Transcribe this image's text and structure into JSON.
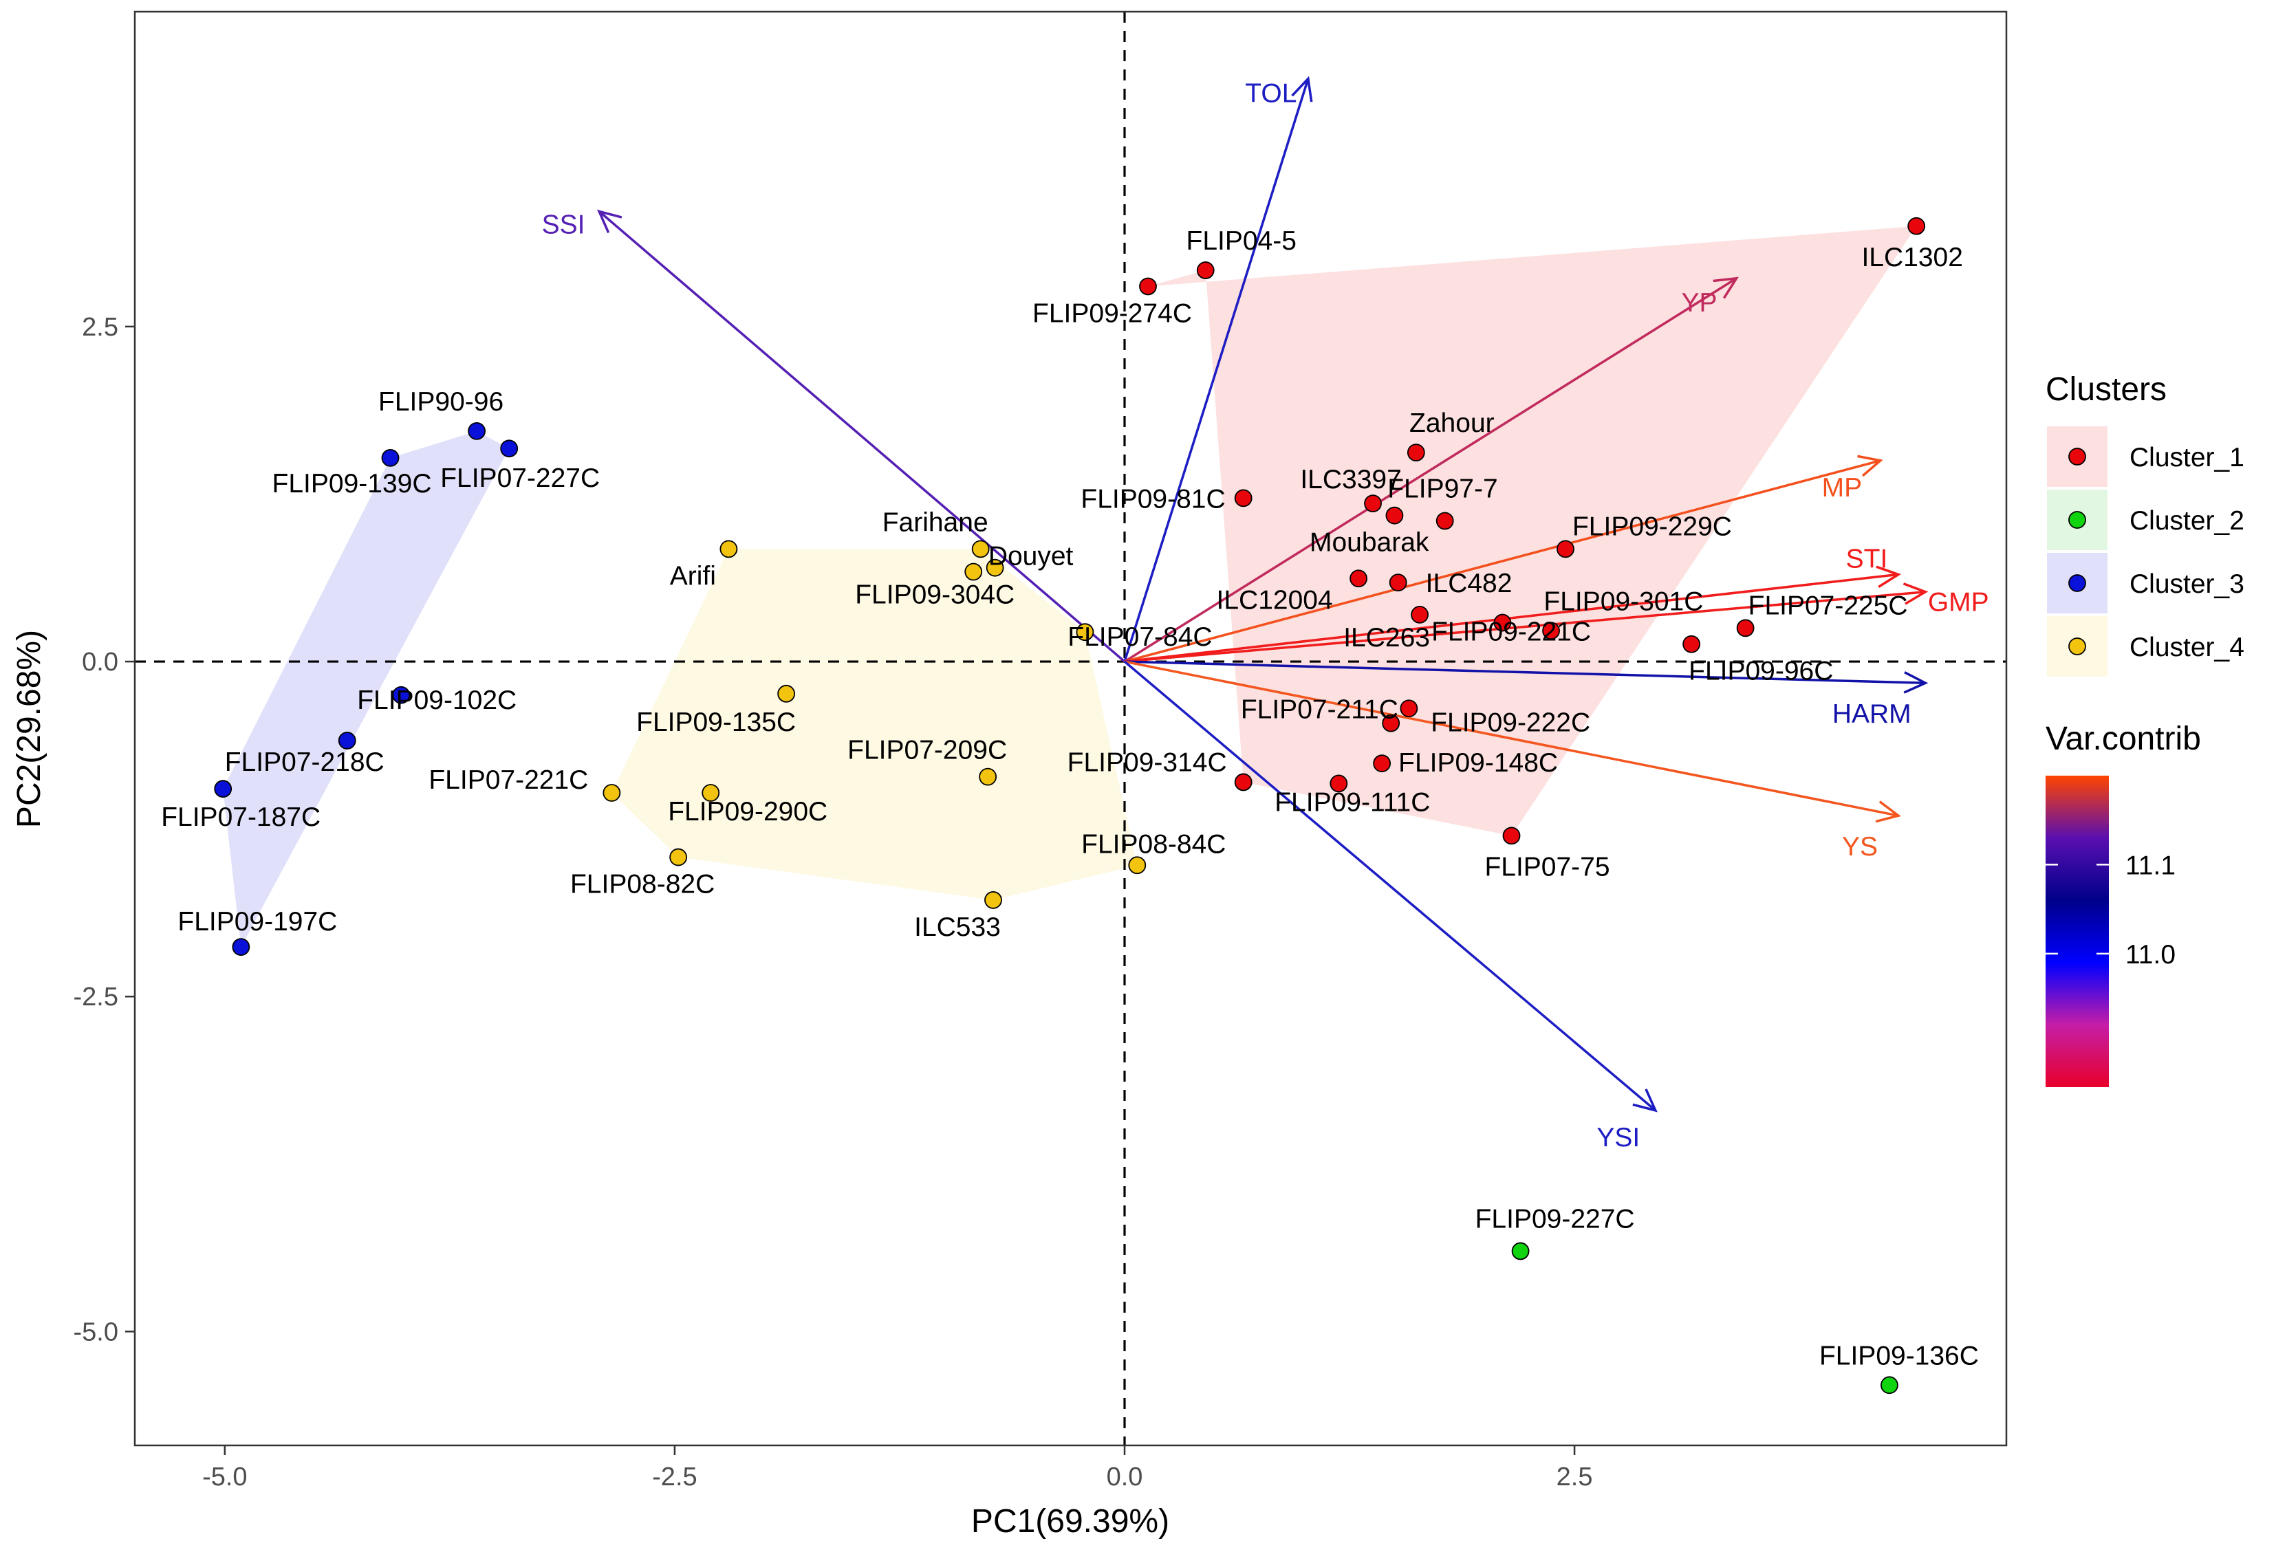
{
  "chart_data": {
    "type": "scatter",
    "subtype": "pca-biplot",
    "xlabel": "PC1(69.39%)",
    "ylabel": "PC2(29.68%)",
    "xlim": [
      -5.5,
      4.9
    ],
    "ylim": [
      -5.85,
      4.85
    ],
    "x_ticks": [
      -5.0,
      -2.5,
      0.0,
      2.5
    ],
    "y_ticks": [
      -5.0,
      -2.5,
      0.0,
      2.5
    ],
    "x_tick_labels": [
      "-5.0",
      "-2.5",
      "0.0",
      "2.5"
    ],
    "y_tick_labels": [
      "-5.0",
      "-2.5",
      "0.0",
      "2.5"
    ],
    "reference_lines": {
      "x": 0,
      "y": 0,
      "style": "dashed"
    },
    "clusters": [
      {
        "name": "Cluster_1",
        "color": "#e8060c",
        "fill": "#fde0e0",
        "hull": [
          "FLIP09-274C",
          "ILC1302",
          "FLIP07-75",
          "FLIP09-314C",
          "FLIP04-5"
        ],
        "points": [
          {
            "label": "ILC1302",
            "x": 4.4,
            "y": 3.25
          },
          {
            "label": "FLIP04-5",
            "x": 0.45,
            "y": 2.92
          },
          {
            "label": "FLIP09-274C",
            "x": 0.13,
            "y": 2.8
          },
          {
            "label": "Zahour",
            "x": 1.62,
            "y": 1.56
          },
          {
            "label": "FLIP09-81C",
            "x": 0.66,
            "y": 1.22
          },
          {
            "label": "ILC3397",
            "x": 1.38,
            "y": 1.18
          },
          {
            "label": "FLIP97-7",
            "x": 1.5,
            "y": 1.09
          },
          {
            "label": "Moubarak",
            "x": 1.78,
            "y": 1.05
          },
          {
            "label": "FLIP09-229C",
            "x": 2.45,
            "y": 0.84
          },
          {
            "label": "ILC12004",
            "x": 1.3,
            "y": 0.62
          },
          {
            "label": "ILC482",
            "x": 1.52,
            "y": 0.59
          },
          {
            "label": "ILC263",
            "x": 1.64,
            "y": 0.35
          },
          {
            "label": "FLIP09-301C",
            "x": 2.1,
            "y": 0.29
          },
          {
            "label": "FLIP09-221C",
            "x": 2.37,
            "y": 0.23
          },
          {
            "label": "FLIP07-225C",
            "x": 3.45,
            "y": 0.25
          },
          {
            "label": "FLIP09-96C",
            "x": 3.15,
            "y": 0.13
          },
          {
            "label": "FLIP07-211C",
            "x": 1.58,
            "y": -0.35
          },
          {
            "label": "FLIP09-222C",
            "x": 1.48,
            "y": -0.46
          },
          {
            "label": "FLIP09-148C",
            "x": 1.43,
            "y": -0.76
          },
          {
            "label": "FLIP09-314C",
            "x": 0.66,
            "y": -0.9
          },
          {
            "label": "FLIP09-111C",
            "x": 1.19,
            "y": -0.91
          },
          {
            "label": "FLIP07-75",
            "x": 2.15,
            "y": -1.3
          }
        ]
      },
      {
        "name": "Cluster_2",
        "color": "#11d411",
        "fill": "#e2f7e2",
        "hull": [],
        "points": [
          {
            "label": "FLIP09-227C",
            "x": 2.2,
            "y": -4.4
          },
          {
            "label": "FLIP09-136C",
            "x": 4.25,
            "y": -5.4
          }
        ]
      },
      {
        "name": "Cluster_3",
        "color": "#0a11d8",
        "fill": "#e0e0fa",
        "hull": [
          "FLIP07-187C",
          "FLIP09-139C",
          "FLIP90-96",
          "FLIP07-227C",
          "FLIP09-197C"
        ],
        "points": [
          {
            "label": "FLIP90-96",
            "x": -3.6,
            "y": 1.72
          },
          {
            "label": "FLIP07-227C",
            "x": -3.42,
            "y": 1.59
          },
          {
            "label": "FLIP09-139C",
            "x": -4.08,
            "y": 1.52
          },
          {
            "label": "FLIP09-102C",
            "x": -4.02,
            "y": -0.25
          },
          {
            "label": "FLIP07-218C",
            "x": -4.32,
            "y": -0.59
          },
          {
            "label": "FLIP07-187C",
            "x": -5.01,
            "y": -0.95
          },
          {
            "label": "FLIP09-197C",
            "x": -4.91,
            "y": -2.13
          }
        ]
      },
      {
        "name": "Cluster_4",
        "color": "#f2c40f",
        "fill": "#fdf9e3",
        "hull": [
          "Arifi",
          "Farihane",
          "FLIP07-84C",
          "FLIP08-84C",
          "ILC533",
          "FLIP08-82C",
          "FLIP07-221C"
        ],
        "points": [
          {
            "label": "Arifi",
            "x": -2.2,
            "y": 0.84
          },
          {
            "label": "Farihane",
            "x": -0.8,
            "y": 0.84
          },
          {
            "label": "Douyet",
            "x": -0.72,
            "y": 0.7
          },
          {
            "label": "FLIP09-304C",
            "x": -0.84,
            "y": 0.67
          },
          {
            "label": "FLIP07-84C",
            "x": -0.22,
            "y": 0.22
          },
          {
            "label": "FLIP09-135C",
            "x": -1.88,
            "y": -0.24
          },
          {
            "label": "FLIP07-209C",
            "x": -0.76,
            "y": -0.86
          },
          {
            "label": "FLIP07-221C",
            "x": -2.85,
            "y": -0.98
          },
          {
            "label": "FLIP09-290C",
            "x": -2.3,
            "y": -0.98
          },
          {
            "label": "FLIP08-82C",
            "x": -2.48,
            "y": -1.46
          },
          {
            "label": "FLIP08-84C",
            "x": 0.07,
            "y": -1.52
          },
          {
            "label": "ILC533",
            "x": -0.73,
            "y": -1.78
          }
        ]
      }
    ],
    "variables": [
      {
        "name": "TOL",
        "x": 1.02,
        "y": 4.35,
        "contrib": 11.1,
        "color": "#1d1dc4"
      },
      {
        "name": "SSI",
        "x": -2.92,
        "y": 3.36,
        "contrib": 11.06,
        "color": "#5520b4"
      },
      {
        "name": "YP",
        "x": 3.4,
        "y": 2.86,
        "contrib": 10.96,
        "color": "#c02a5c"
      },
      {
        "name": "MP",
        "x": 4.2,
        "y": 1.5,
        "contrib": 10.92,
        "color": "#f3501d"
      },
      {
        "name": "STI",
        "x": 4.3,
        "y": 0.65,
        "contrib": 10.9,
        "color": "#f11c1c"
      },
      {
        "name": "GMP",
        "x": 4.45,
        "y": 0.52,
        "contrib": 10.9,
        "color": "#f11c1c"
      },
      {
        "name": "HARM",
        "x": 4.45,
        "y": -0.16,
        "contrib": 11.12,
        "color": "#1212a8"
      },
      {
        "name": "YS",
        "x": 4.3,
        "y": -1.15,
        "contrib": 10.93,
        "color": "#f3561e"
      },
      {
        "name": "YSI",
        "x": 2.95,
        "y": -3.35,
        "contrib": 11.1,
        "color": "#1d1dc4"
      }
    ],
    "legend": {
      "position": "right",
      "clusters_title": "Clusters",
      "items": [
        "Cluster_1",
        "Cluster_2",
        "Cluster_3",
        "Cluster_4"
      ],
      "gradient_title": "Var.contrib",
      "gradient_ticks": [
        11.1,
        11.0
      ],
      "gradient_tick_labels": [
        "11.1",
        "11.0"
      ],
      "gradient_range": [
        10.85,
        11.2
      ],
      "gradient_colors": [
        "#e8002a",
        "#c51ea7",
        "#0000ff",
        "#00008b",
        "#5a0fb0",
        "#ff4500"
      ]
    }
  }
}
